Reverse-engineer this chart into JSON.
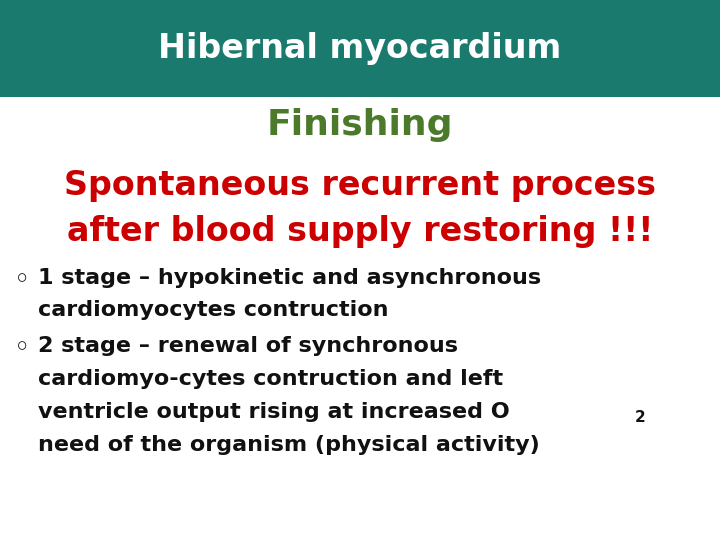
{
  "title": "Hibernal myocardium",
  "title_bg_color": "#1a7a6e",
  "title_text_color": "#ffffff",
  "subtitle": "Finishing",
  "subtitle_color": "#4a7a2a",
  "red_line1": "Spontaneous recurrent process",
  "red_line2": "after blood supply restoring !!!",
  "red_color": "#cc0000",
  "bullet1_line1": "1 stage – hypokinetic and asynchronous",
  "bullet1_line2": "cardiomyocytes contruction",
  "bullet2_line1": "2 stage – renewal of synchronous",
  "bullet2_line2": "cardiomyo-cytes contruction and left",
  "bullet2_line3": "ventricle output rising at increased O",
  "bullet2_subscript": "2",
  "bullet2_line4": "need of the organism (physical activity)",
  "black_color": "#111111",
  "bg_color": "#ffffff"
}
